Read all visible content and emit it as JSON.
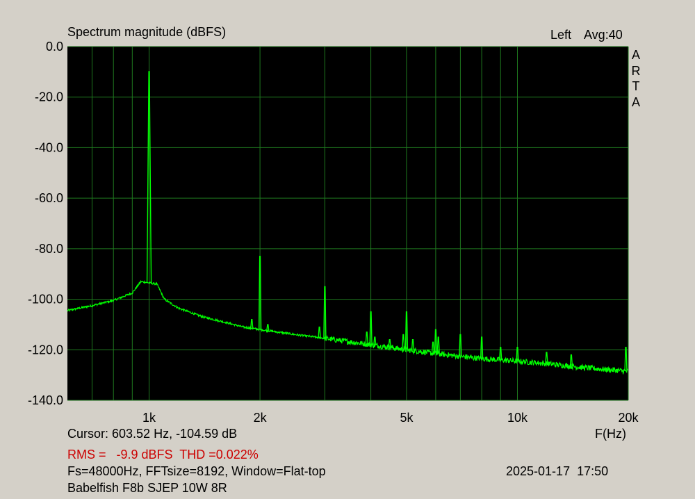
{
  "header": {
    "title": "Spectrum magnitude (dBFS)",
    "channel": "Left",
    "averaging": "Avg:40",
    "brand_letters": [
      "A",
      "R",
      "T",
      "A"
    ]
  },
  "footer": {
    "cursor": "Cursor: 603.52 Hz, -104.59 dB",
    "x_unit": "F(Hz)",
    "rms_thd": "RMS =   -9.9 dBFS  THD =0.022%",
    "settings": "Fs=48000Hz, FFTsize=8192, Window=Flat-top",
    "datetime": "2025-01-17  17:50",
    "device": "Babelfish F8b SJEP 10W 8R"
  },
  "colors": {
    "background": "#d4d0c8",
    "plot_bg": "#000000",
    "grid": "#1f7a1f",
    "trace": "#00ff00",
    "rms_text": "#cc0000"
  },
  "chart_data": {
    "type": "line",
    "title": "Spectrum magnitude (dBFS)",
    "xlabel": "F(Hz)",
    "ylabel": "",
    "x_scale": "log",
    "xlim": [
      600,
      20000
    ],
    "ylim": [
      -140,
      0
    ],
    "grid": true,
    "x_ticks": [
      {
        "value": 1000,
        "label": "1k"
      },
      {
        "value": 2000,
        "label": "2k"
      },
      {
        "value": 5000,
        "label": "5k"
      },
      {
        "value": 10000,
        "label": "10k"
      },
      {
        "value": 20000,
        "label": "20k"
      }
    ],
    "x_minor_grid": [
      700,
      800,
      900,
      3000,
      4000,
      6000,
      7000,
      8000,
      9000
    ],
    "y_ticks": [
      {
        "value": 0,
        "label": "0.0"
      },
      {
        "value": -20,
        "label": "-20.0"
      },
      {
        "value": -40,
        "label": "-40.0"
      },
      {
        "value": -60,
        "label": "-60.0"
      },
      {
        "value": -80,
        "label": "-80.0"
      },
      {
        "value": -100,
        "label": "-100.0"
      },
      {
        "value": -120,
        "label": "-120.0"
      },
      {
        "value": -140,
        "label": "-140.0"
      }
    ],
    "series": [
      {
        "color": "#00ff00",
        "noise_floor": [
          [
            600,
            -104.5
          ],
          [
            700,
            -102.5
          ],
          [
            800,
            -100.5
          ],
          [
            900,
            -97.5
          ],
          [
            950,
            -93
          ],
          [
            1050,
            -94
          ],
          [
            1100,
            -100
          ],
          [
            1200,
            -103.5
          ],
          [
            1400,
            -107
          ],
          [
            1600,
            -109
          ],
          [
            1800,
            -111
          ],
          [
            2000,
            -112
          ],
          [
            2500,
            -114
          ],
          [
            3000,
            -115.5
          ],
          [
            4000,
            -118
          ],
          [
            5000,
            -120
          ],
          [
            6000,
            -121.5
          ],
          [
            8000,
            -123.5
          ],
          [
            10000,
            -124.5
          ],
          [
            12000,
            -125.5
          ],
          [
            15000,
            -127
          ],
          [
            18000,
            -128
          ],
          [
            20000,
            -128.5
          ]
        ],
        "peaks": [
          {
            "freq": 1000,
            "level": -9.9
          },
          {
            "freq": 1900,
            "level": -108
          },
          {
            "freq": 2000,
            "level": -83
          },
          {
            "freq": 2100,
            "level": -110
          },
          {
            "freq": 2900,
            "level": -111
          },
          {
            "freq": 3000,
            "level": -95
          },
          {
            "freq": 3900,
            "level": -113
          },
          {
            "freq": 4000,
            "level": -105
          },
          {
            "freq": 4100,
            "level": -115
          },
          {
            "freq": 4500,
            "level": -116
          },
          {
            "freq": 4900,
            "level": -114
          },
          {
            "freq": 5000,
            "level": -105
          },
          {
            "freq": 5200,
            "level": -116
          },
          {
            "freq": 5900,
            "level": -117
          },
          {
            "freq": 6000,
            "level": -112
          },
          {
            "freq": 6100,
            "level": -115
          },
          {
            "freq": 7000,
            "level": -114
          },
          {
            "freq": 8000,
            "level": -115
          },
          {
            "freq": 9000,
            "level": -119
          },
          {
            "freq": 10000,
            "level": -119
          },
          {
            "freq": 12000,
            "level": -121
          },
          {
            "freq": 14000,
            "level": -122
          },
          {
            "freq": 19700,
            "level": -119
          }
        ]
      }
    ]
  }
}
